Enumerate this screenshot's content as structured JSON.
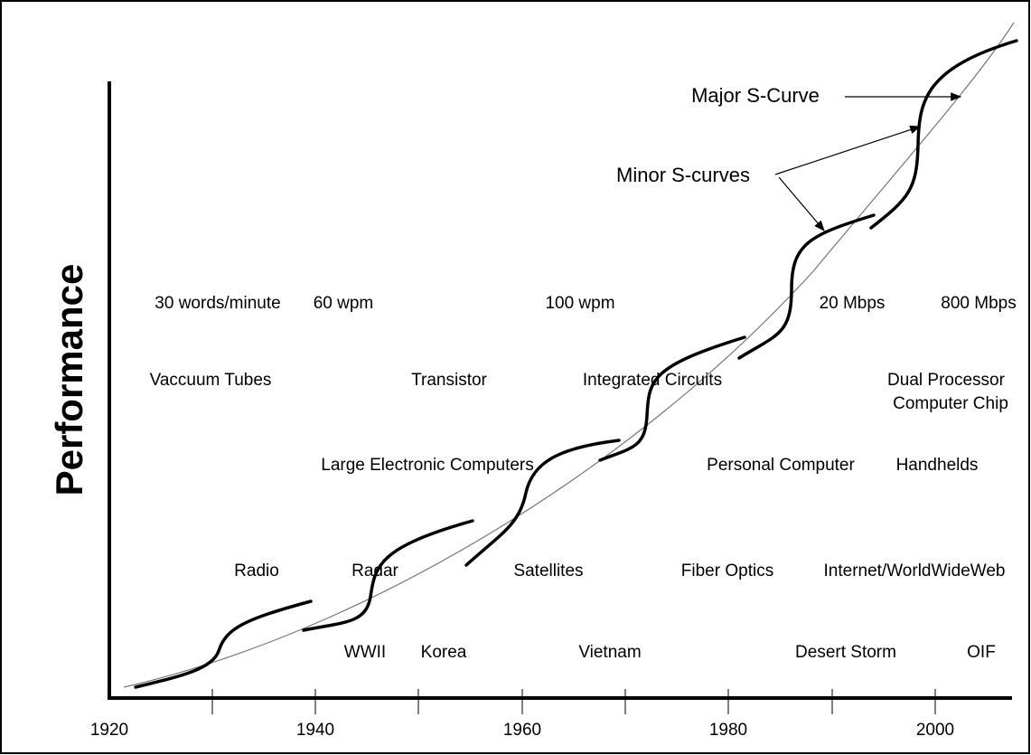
{
  "axis": {
    "y_label": "Performance",
    "x_ticks": [
      "1920",
      "1940",
      "1960",
      "1980",
      "2000"
    ]
  },
  "annotations": {
    "major": "Major S-Curve",
    "minor": "Minor S-curves"
  },
  "rows": {
    "communication": [
      "30 words/minute",
      "60 wpm",
      "100 wpm",
      "20 Mbps",
      "800 Mbps"
    ],
    "components": [
      "Vaccuum Tubes",
      "Transistor",
      "Integrated Circuits",
      "Dual Processor",
      "Computer Chip"
    ],
    "computers": [
      "Large Electronic Computers",
      "Personal Computer",
      "Handhelds"
    ],
    "networks": [
      "Radio",
      "Radar",
      "Satellites",
      "Fiber Optics",
      "Internet/WorldWideWeb"
    ],
    "wars": [
      "WWII",
      "Korea",
      "Vietnam",
      "Desert Storm",
      "OIF"
    ]
  }
}
